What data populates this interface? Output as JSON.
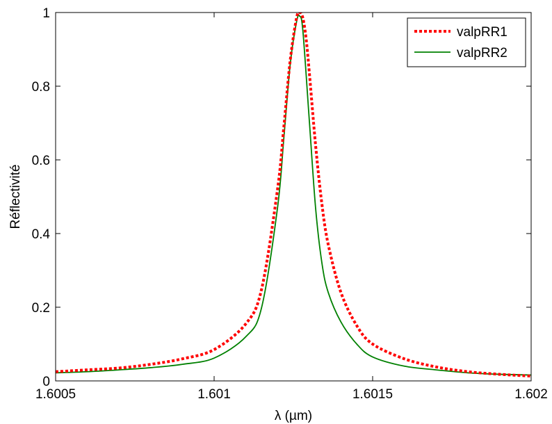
{
  "chart_data": {
    "type": "line",
    "xlabel": "λ (µm)",
    "ylabel": "Réflectivité",
    "xlim": [
      1.6005,
      1.602
    ],
    "ylim": [
      0,
      1
    ],
    "xticks": [
      1.6005,
      1.601,
      1.6015,
      1.602
    ],
    "xtick_labels": [
      "1.6005",
      "1.601",
      "1.6015",
      "1.602"
    ],
    "yticks": [
      0,
      0.2,
      0.4,
      0.6,
      0.8,
      1
    ],
    "ytick_labels": [
      "0",
      "0.2",
      "0.4",
      "0.6",
      "0.8",
      "1"
    ],
    "grid": false,
    "legend_position": "top-right",
    "series": [
      {
        "name": "valpRR1",
        "color": "#ff0000",
        "style": "dotted",
        "x": [
          1.6005,
          1.6006,
          1.6007,
          1.6008,
          1.6009,
          1.601,
          1.6011,
          1.60115,
          1.6012,
          1.60122,
          1.60124,
          1.60126,
          1.60127,
          1.60128,
          1.60129,
          1.6013,
          1.60132,
          1.60134,
          1.60136,
          1.6014,
          1.60145,
          1.6015,
          1.6016,
          1.6017,
          1.6018,
          1.6019,
          1.602
        ],
        "y": [
          0.025,
          0.03,
          0.035,
          0.045,
          0.06,
          0.085,
          0.155,
          0.25,
          0.52,
          0.69,
          0.87,
          0.985,
          1.0,
          0.985,
          0.93,
          0.84,
          0.64,
          0.48,
          0.37,
          0.24,
          0.15,
          0.1,
          0.06,
          0.038,
          0.025,
          0.018,
          0.013
        ]
      },
      {
        "name": "valpRR2",
        "color": "#008000",
        "style": "solid",
        "x": [
          1.6005,
          1.6006,
          1.6007,
          1.6008,
          1.6009,
          1.601,
          1.6011,
          1.60115,
          1.6012,
          1.60122,
          1.60124,
          1.60126,
          1.60127,
          1.60128,
          1.6013,
          1.60132,
          1.60134,
          1.60136,
          1.6014,
          1.60145,
          1.6015,
          1.6016,
          1.6017,
          1.6018,
          1.6019,
          1.602
        ],
        "y": [
          0.022,
          0.025,
          0.03,
          0.036,
          0.045,
          0.062,
          0.12,
          0.2,
          0.47,
          0.66,
          0.86,
          0.975,
          0.99,
          0.95,
          0.71,
          0.47,
          0.32,
          0.24,
          0.16,
          0.1,
          0.065,
          0.04,
          0.03,
          0.022,
          0.018,
          0.016
        ]
      }
    ]
  }
}
